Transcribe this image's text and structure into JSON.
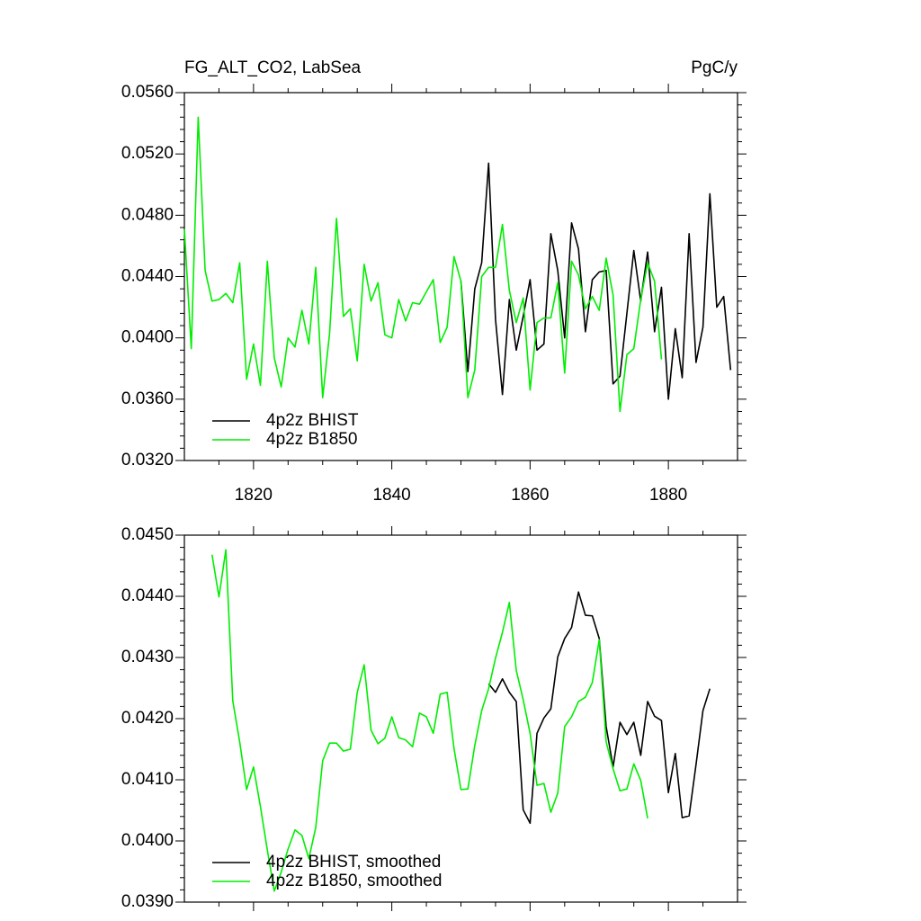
{
  "chart_data": [
    {
      "type": "line",
      "title": "FG_ALT_CO2, LabSea",
      "title_right": "PgC/y",
      "xlim": [
        1810,
        1890
      ],
      "xticks": [
        1820,
        1840,
        1860,
        1880
      ],
      "show_xtick_labels": true,
      "ylim": [
        0.032,
        0.056
      ],
      "yticks": [
        {
          "value": 0.032,
          "label": "0.0320"
        },
        {
          "value": 0.036,
          "label": "0.0360"
        },
        {
          "value": 0.04,
          "label": "0.0400"
        },
        {
          "value": 0.044,
          "label": "0.0440"
        },
        {
          "value": 0.048,
          "label": "0.0480"
        },
        {
          "value": 0.052,
          "label": "0.0520"
        },
        {
          "value": 0.056,
          "label": "0.0560"
        }
      ],
      "legend": "lower left",
      "series": [
        {
          "name": "4p2z BHIST",
          "color": "#000000",
          "x": [
            1850,
            1851,
            1852,
            1853,
            1854,
            1855,
            1856,
            1857,
            1858,
            1859,
            1860,
            1861,
            1862,
            1863,
            1864,
            1865,
            1866,
            1867,
            1868,
            1869,
            1870,
            1871,
            1872,
            1873,
            1874,
            1875,
            1876,
            1877,
            1878,
            1879,
            1880,
            1881,
            1882,
            1883,
            1884,
            1885,
            1886,
            1887,
            1888,
            1889
          ],
          "values": [
            0.0437,
            0.0378,
            0.0432,
            0.0449,
            0.0514,
            0.0412,
            0.0363,
            0.0425,
            0.0392,
            0.0414,
            0.0438,
            0.0392,
            0.0396,
            0.0468,
            0.0444,
            0.04,
            0.0475,
            0.0458,
            0.0404,
            0.0438,
            0.0443,
            0.0444,
            0.037,
            0.0375,
            0.0416,
            0.0457,
            0.0424,
            0.0456,
            0.0404,
            0.0433,
            0.036,
            0.0406,
            0.0374,
            0.0468,
            0.0384,
            0.0407,
            0.0494,
            0.042,
            0.0427,
            0.0379
          ]
        },
        {
          "name": "4p2z B1850",
          "color": "#00ee00",
          "x": [
            1810,
            1811,
            1812,
            1813,
            1814,
            1815,
            1816,
            1817,
            1818,
            1819,
            1820,
            1821,
            1822,
            1823,
            1824,
            1825,
            1826,
            1827,
            1828,
            1829,
            1830,
            1831,
            1832,
            1833,
            1834,
            1835,
            1836,
            1837,
            1838,
            1839,
            1840,
            1841,
            1842,
            1843,
            1844,
            1845,
            1846,
            1847,
            1848,
            1849,
            1850,
            1851,
            1852,
            1853,
            1854,
            1855,
            1856,
            1857,
            1858,
            1859,
            1860,
            1861,
            1862,
            1863,
            1864,
            1865,
            1866,
            1867,
            1868,
            1869,
            1870,
            1871,
            1872,
            1873,
            1874,
            1875,
            1876,
            1877,
            1878,
            1879
          ],
          "values": [
            0.0471,
            0.0393,
            0.0544,
            0.0444,
            0.0424,
            0.0425,
            0.0429,
            0.0423,
            0.0449,
            0.0373,
            0.0396,
            0.0369,
            0.045,
            0.0387,
            0.0368,
            0.04,
            0.0394,
            0.0418,
            0.0396,
            0.0446,
            0.0361,
            0.0403,
            0.0478,
            0.0414,
            0.0419,
            0.0385,
            0.0448,
            0.0424,
            0.0436,
            0.0402,
            0.04,
            0.0425,
            0.0411,
            0.0423,
            0.0422,
            0.043,
            0.0438,
            0.0397,
            0.0407,
            0.0453,
            0.0437,
            0.0361,
            0.0379,
            0.044,
            0.0446,
            0.0446,
            0.0474,
            0.0431,
            0.041,
            0.0426,
            0.0366,
            0.041,
            0.0413,
            0.0413,
            0.0436,
            0.0377,
            0.045,
            0.0441,
            0.0419,
            0.0427,
            0.0418,
            0.0452,
            0.0428,
            0.0352,
            0.0389,
            0.0393,
            0.0425,
            0.0449,
            0.0437,
            0.0386
          ]
        }
      ]
    },
    {
      "type": "line",
      "xlim": [
        1810,
        1890
      ],
      "xticks": [
        1820,
        1840,
        1860,
        1880
      ],
      "show_xtick_labels": false,
      "ylim": [
        0.039,
        0.045
      ],
      "yticks": [
        {
          "value": 0.039,
          "label": "0.0390"
        },
        {
          "value": 0.04,
          "label": "0.0400"
        },
        {
          "value": 0.041,
          "label": "0.0410"
        },
        {
          "value": 0.042,
          "label": "0.0420"
        },
        {
          "value": 0.043,
          "label": "0.0430"
        },
        {
          "value": 0.044,
          "label": "0.0440"
        },
        {
          "value": 0.045,
          "label": "0.0450"
        }
      ],
      "legend": "lower left",
      "series": [
        {
          "name": "4p2z BHIST, smoothed",
          "color": "#000000",
          "x": [
            1854,
            1855,
            1856,
            1857,
            1858,
            1859,
            1860,
            1861,
            1862,
            1863,
            1864,
            1865,
            1866,
            1867,
            1868,
            1869,
            1870,
            1871,
            1872,
            1873,
            1874,
            1875,
            1876,
            1877,
            1878,
            1879,
            1880,
            1881,
            1882,
            1883,
            1884,
            1885,
            1886
          ],
          "values": [
            0.04257,
            0.04243,
            0.04265,
            0.04243,
            0.04228,
            0.04051,
            0.04029,
            0.04176,
            0.04201,
            0.04216,
            0.04301,
            0.04331,
            0.04349,
            0.04407,
            0.04369,
            0.04368,
            0.04331,
            0.04187,
            0.04121,
            0.04194,
            0.04174,
            0.04194,
            0.0414,
            0.04228,
            0.04204,
            0.04197,
            0.04079,
            0.04143,
            0.04038,
            0.04041,
            0.04125,
            0.04213,
            0.04249
          ]
        },
        {
          "name": "4p2z B1850, smoothed",
          "color": "#00ee00",
          "x": [
            1814,
            1815,
            1816,
            1817,
            1818,
            1819,
            1820,
            1821,
            1822,
            1823,
            1824,
            1825,
            1826,
            1827,
            1828,
            1829,
            1830,
            1831,
            1832,
            1833,
            1834,
            1835,
            1836,
            1837,
            1838,
            1839,
            1840,
            1841,
            1842,
            1843,
            1844,
            1845,
            1846,
            1847,
            1848,
            1849,
            1850,
            1851,
            1852,
            1853,
            1854,
            1855,
            1856,
            1857,
            1858,
            1859,
            1860,
            1861,
            1862,
            1863,
            1864,
            1865,
            1866,
            1867,
            1868,
            1869,
            1870,
            1871,
            1872,
            1873,
            1874,
            1875,
            1876,
            1877
          ],
          "values": [
            0.04468,
            0.04399,
            0.04476,
            0.04229,
            0.04162,
            0.04084,
            0.04121,
            0.04056,
            0.03985,
            0.03918,
            0.03949,
            0.03987,
            0.04018,
            0.04009,
            0.03971,
            0.04022,
            0.04131,
            0.0416,
            0.0416,
            0.04147,
            0.0415,
            0.04243,
            0.04288,
            0.04181,
            0.04159,
            0.04168,
            0.04203,
            0.04169,
            0.04165,
            0.04154,
            0.04209,
            0.04203,
            0.04176,
            0.0424,
            0.04243,
            0.04151,
            0.04084,
            0.04085,
            0.04156,
            0.04213,
            0.04249,
            0.04299,
            0.04341,
            0.0439,
            0.04279,
            0.04231,
            0.04176,
            0.04091,
            0.04094,
            0.04047,
            0.04078,
            0.04187,
            0.04203,
            0.04228,
            0.04235,
            0.04259,
            0.04329,
            0.04162,
            0.04118,
            0.04082,
            0.04085,
            0.04126,
            0.04099,
            0.04037
          ]
        }
      ]
    }
  ]
}
